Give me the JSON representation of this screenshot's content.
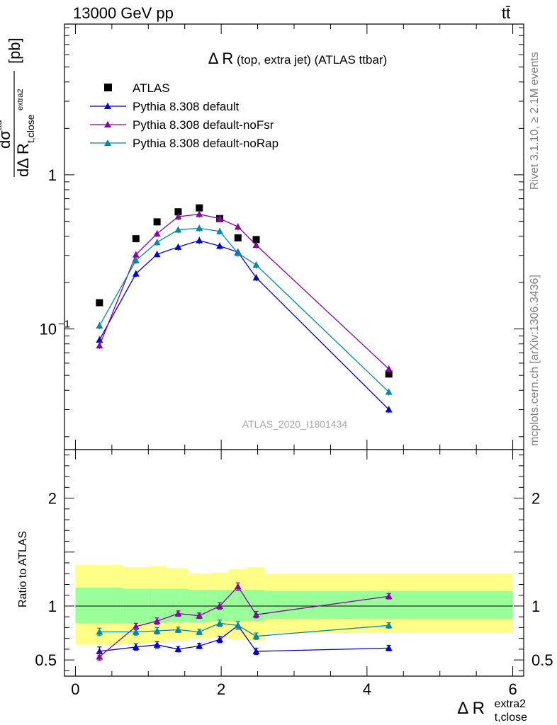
{
  "header": {
    "energy_label": "13000 GeV pp",
    "process_label": "tt̄"
  },
  "side_labels": {
    "rivet": "Rivet 3.1.10, ≥ 2.1M events",
    "mcplots": "mcplots.cern.ch [arXiv:1306.3436]"
  },
  "chart_data": [
    {
      "type": "scatter",
      "title": "Δ R (top, extra jet) (ATLAS ttbar)",
      "watermark": "ATLAS_2020_I1801434",
      "ylabel": "dσ^ttd / dΔ R_t,close^extra2 [pb]",
      "yscale": "log",
      "xlim": [
        -0.15,
        6.15
      ],
      "ylim": [
        0.0165,
        9.5
      ],
      "ytick_labels": [
        "10^-1",
        "1"
      ],
      "legend_position": "top-left",
      "x": [
        0.33,
        0.83,
        1.12,
        1.41,
        1.7,
        1.98,
        2.23,
        2.48,
        4.3
      ],
      "series": [
        {
          "name": "ATLAS",
          "color": "#000000",
          "marker": "square",
          "values": [
            0.148,
            0.385,
            0.495,
            0.575,
            0.61,
            0.52,
            0.39,
            0.38,
            0.051
          ]
        },
        {
          "name": "Pythia 8.308 default",
          "color": "#0000cc",
          "marker": "triangle",
          "values": [
            0.085,
            0.228,
            0.305,
            0.34,
            0.375,
            0.345,
            0.315,
            0.215,
            0.03
          ]
        },
        {
          "name": "Pythia 8.308 default-noFsr",
          "color": "#8800aa",
          "marker": "triangle",
          "values": [
            0.078,
            0.303,
            0.415,
            0.535,
            0.555,
            0.52,
            0.46,
            0.35,
            0.055
          ]
        },
        {
          "name": "Pythia 8.308 default-noRap",
          "color": "#0088aa",
          "marker": "triangle",
          "values": [
            0.105,
            0.278,
            0.365,
            0.44,
            0.45,
            0.43,
            0.31,
            0.26,
            0.039
          ]
        }
      ]
    },
    {
      "type": "scatter",
      "xlabel": "Δ R_t,close^extra2",
      "ylabel": "Ratio to ATLAS",
      "xlim": [
        -0.15,
        6.15
      ],
      "ylim": [
        0.35,
        2.45
      ],
      "xticks": [
        0,
        2,
        4,
        6
      ],
      "x_tick_labels": [
        "0",
        "2",
        "4",
        "6"
      ],
      "yticks": [
        0.5,
        1,
        2
      ],
      "y_tick_labels": [
        "0.5",
        "1",
        "2"
      ],
      "reference_line": 1,
      "uncertainty_bands": {
        "bin_edges": [
          0,
          0.65,
          1,
          1.25,
          1.55,
          1.85,
          2.1,
          2.35,
          2.6,
          6
        ],
        "inner_low": [
          0.84,
          0.84,
          0.84,
          0.85,
          0.85,
          0.86,
          0.86,
          0.86,
          0.88
        ],
        "inner_high": [
          1.17,
          1.16,
          1.16,
          1.16,
          1.15,
          1.15,
          1.15,
          1.15,
          1.14
        ],
        "outer_low": [
          0.64,
          0.65,
          0.66,
          0.68,
          0.7,
          0.71,
          0.69,
          0.68,
          0.75
        ],
        "outer_high": [
          1.38,
          1.36,
          1.37,
          1.35,
          1.3,
          1.31,
          1.34,
          1.36,
          1.3
        ]
      },
      "x": [
        0.33,
        0.83,
        1.12,
        1.41,
        1.7,
        1.98,
        2.23,
        2.48,
        4.3
      ],
      "series": [
        {
          "name": "Pythia 8.308 default",
          "color": "#0000cc",
          "values": [
            0.58,
            0.62,
            0.64,
            0.6,
            0.63,
            0.69,
            0.82,
            0.58,
            0.61
          ],
          "errors": [
            0.04,
            0.03,
            0.03,
            0.025,
            0.025,
            0.03,
            0.035,
            0.03,
            0.025
          ]
        },
        {
          "name": "Pythia 8.308 default-noFsr",
          "color": "#8800aa",
          "values": [
            0.53,
            0.81,
            0.86,
            0.93,
            0.91,
            1.0,
            1.18,
            0.92,
            1.09
          ],
          "errors": [
            0.035,
            0.03,
            0.03,
            0.025,
            0.025,
            0.03,
            0.035,
            0.03,
            0.025
          ]
        },
        {
          "name": "Pythia 8.308 default-noRap",
          "color": "#0088aa",
          "values": [
            0.76,
            0.76,
            0.77,
            0.78,
            0.76,
            0.84,
            0.82,
            0.72,
            0.82
          ],
          "errors": [
            0.035,
            0.03,
            0.03,
            0.025,
            0.025,
            0.03,
            0.035,
            0.03,
            0.025
          ]
        }
      ]
    }
  ]
}
